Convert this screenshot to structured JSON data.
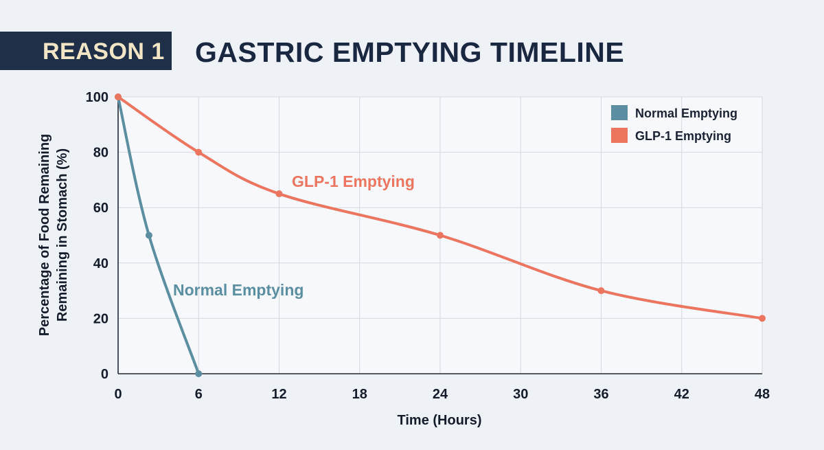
{
  "header": {
    "badge": "REASON 1",
    "title": "GASTRIC EMPTYING TIMELINE"
  },
  "colors": {
    "background": "#eef2f7",
    "badge_bg": "#1f2f48",
    "badge_text": "#f3e6c6",
    "normal": "#5a8ea0",
    "glp1": "#ec7560",
    "grid": "#d3d8df"
  },
  "chart_data": {
    "type": "line",
    "xlabel": "Time (Hours)",
    "ylabel_lines": [
      "Percentage of Food Remaining",
      "Remaining in Stomach (%)"
    ],
    "xlim": [
      0,
      48
    ],
    "ylim": [
      0,
      100
    ],
    "xticks": [
      0,
      6,
      12,
      18,
      24,
      30,
      36,
      42,
      48
    ],
    "yticks": [
      0,
      20,
      40,
      60,
      80,
      100
    ],
    "grid": true,
    "legend_position": "top-right",
    "series": [
      {
        "name": "Normal Emptying",
        "color": "#5a8ea0",
        "x": [
          0,
          2.3,
          6
        ],
        "y": [
          100,
          50,
          0
        ],
        "annotation": "Normal Emptying"
      },
      {
        "name": "GLP-1 Emptying",
        "color": "#ec7560",
        "x": [
          0,
          6,
          12,
          24,
          36,
          48
        ],
        "y": [
          100,
          80,
          65,
          50,
          30,
          20
        ],
        "annotation": "GLP-1 Emptying"
      }
    ]
  }
}
